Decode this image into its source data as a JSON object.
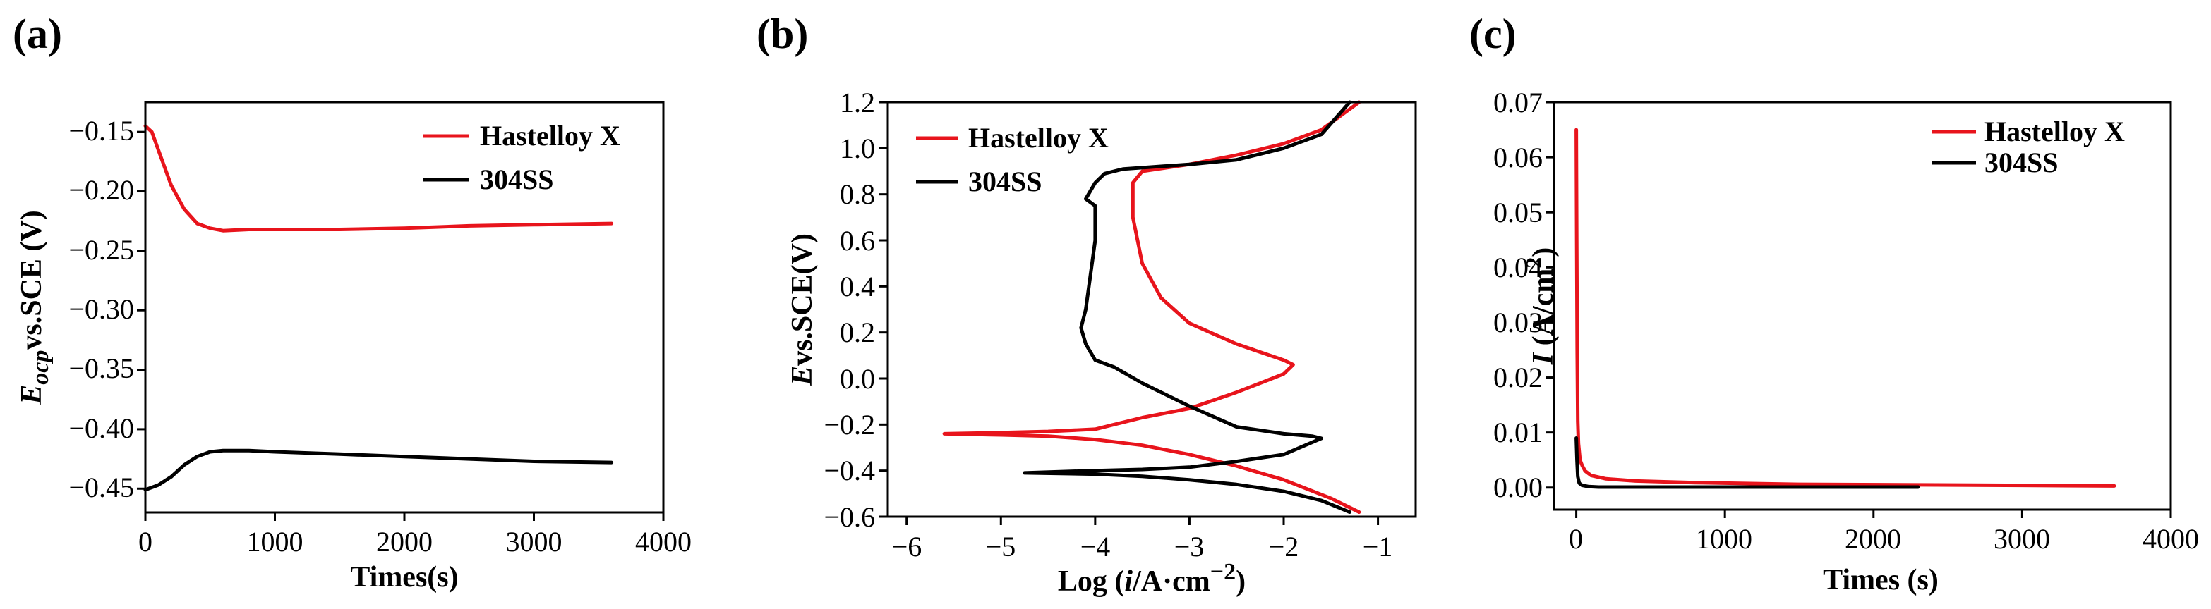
{
  "chart_data": [
    {
      "panel": "(a)",
      "type": "line",
      "xlabel": "Times(s)",
      "ylabel": "E_ocp vs.SCE (V)",
      "ylabel_parts": {
        "symbol": "E",
        "sub": "ocp",
        "rest": "vs.SCE (V)"
      },
      "xlim": [
        0,
        4000
      ],
      "ylim": [
        -0.47,
        -0.125
      ],
      "xticks": [
        0,
        1000,
        2000,
        3000,
        4000
      ],
      "xtick_labels": [
        "0",
        "1000",
        "2000",
        "3000",
        "4000"
      ],
      "yticks": [
        -0.15,
        -0.2,
        -0.25,
        -0.3,
        -0.35,
        -0.4,
        -0.45
      ],
      "ytick_labels": [
        "−0.15",
        "−0.20",
        "−0.25",
        "−0.30",
        "−0.35",
        "−0.40",
        "−0.45"
      ],
      "legend_position": "top-right",
      "series": [
        {
          "name": "Hastelloy X",
          "color": "#e8141c",
          "x": [
            0,
            50,
            100,
            150,
            200,
            300,
            400,
            500,
            600,
            800,
            1000,
            1500,
            2000,
            2500,
            3000,
            3600
          ],
          "y": [
            -0.145,
            -0.15,
            -0.165,
            -0.18,
            -0.195,
            -0.215,
            -0.227,
            -0.231,
            -0.233,
            -0.232,
            -0.232,
            -0.232,
            -0.231,
            -0.229,
            -0.228,
            -0.227
          ]
        },
        {
          "name": "304SS",
          "color": "#000000",
          "x": [
            0,
            100,
            200,
            300,
            400,
            500,
            600,
            800,
            1000,
            1500,
            2000,
            2500,
            3000,
            3600
          ],
          "y": [
            -0.451,
            -0.447,
            -0.44,
            -0.43,
            -0.423,
            -0.419,
            -0.418,
            -0.418,
            -0.419,
            -0.421,
            -0.423,
            -0.425,
            -0.427,
            -0.428
          ]
        }
      ]
    },
    {
      "panel": "(b)",
      "type": "line",
      "xlabel": "Log (i/A·cm−2)",
      "xlabel_parts": {
        "prefix": "Log (",
        "italic": "i",
        "unit": "/A·cm",
        "sup": "−2",
        "suffix": ")"
      },
      "ylabel": "E vs.SCE(V)",
      "ylabel_parts": {
        "symbol": "E",
        "rest": "vs.SCE(V)"
      },
      "xlim": [
        -6.2,
        -0.6
      ],
      "ylim": [
        -0.6,
        1.2
      ],
      "xticks": [
        -6,
        -5,
        -4,
        -3,
        -2,
        -1
      ],
      "xtick_labels": [
        "−6",
        "−5",
        "−4",
        "−3",
        "−2",
        "−1"
      ],
      "yticks": [
        -0.6,
        -0.4,
        -0.2,
        0.0,
        0.2,
        0.4,
        0.6,
        0.8,
        1.0,
        1.2
      ],
      "ytick_labels": [
        "−0.6",
        "−0.4",
        "−0.2",
        "0.0",
        "0.2",
        "0.4",
        "0.6",
        "0.8",
        "1.0",
        "1.2"
      ],
      "legend_position": "top-left",
      "series": [
        {
          "name": "Hastelloy X",
          "color": "#e8141c",
          "x": [
            -1.2,
            -1.5,
            -2.0,
            -2.5,
            -3.0,
            -3.5,
            -4.0,
            -4.5,
            -5.0,
            -5.6,
            -5.0,
            -4.5,
            -4.0,
            -3.8,
            -3.5,
            -3.0,
            -2.5,
            -2.0,
            -1.9,
            -2.0,
            -2.5,
            -3.0,
            -3.3,
            -3.5,
            -3.6,
            -3.6,
            -3.5,
            -3.0,
            -2.5,
            -2.0,
            -1.6,
            -1.2
          ],
          "y": [
            -0.58,
            -0.52,
            -0.44,
            -0.38,
            -0.33,
            -0.29,
            -0.265,
            -0.25,
            -0.245,
            -0.24,
            -0.235,
            -0.23,
            -0.22,
            -0.2,
            -0.17,
            -0.13,
            -0.06,
            0.02,
            0.06,
            0.08,
            0.15,
            0.24,
            0.35,
            0.5,
            0.7,
            0.85,
            0.9,
            0.93,
            0.97,
            1.02,
            1.08,
            1.2
          ]
        },
        {
          "name": "304SS",
          "color": "#000000",
          "x": [
            -1.3,
            -1.6,
            -2.0,
            -2.5,
            -3.0,
            -3.5,
            -4.0,
            -4.75,
            -4.0,
            -3.5,
            -3.0,
            -2.5,
            -2.0,
            -1.6,
            -1.7,
            -2.0,
            -2.5,
            -3.0,
            -3.5,
            -3.8,
            -4.0,
            -4.1,
            -4.15,
            -4.1,
            -4.05,
            -4.0,
            -4.0,
            -4.1,
            -4.0,
            -3.9,
            -3.7,
            -3.0,
            -2.5,
            -2.0,
            -1.6,
            -1.3
          ],
          "y": [
            -0.58,
            -0.53,
            -0.49,
            -0.46,
            -0.44,
            -0.425,
            -0.415,
            -0.41,
            -0.4,
            -0.395,
            -0.385,
            -0.36,
            -0.33,
            -0.26,
            -0.25,
            -0.24,
            -0.21,
            -0.12,
            -0.02,
            0.05,
            0.08,
            0.15,
            0.22,
            0.3,
            0.45,
            0.6,
            0.75,
            0.78,
            0.85,
            0.89,
            0.91,
            0.93,
            0.95,
            1.0,
            1.06,
            1.2
          ]
        }
      ]
    },
    {
      "panel": "(c)",
      "type": "line",
      "xlabel": "Times (s)",
      "ylabel": "I (A/cm2)",
      "ylabel_parts": {
        "symbol": "I",
        "rest": " (A/cm",
        "sup": "2",
        "suffix": ")"
      },
      "xlim": [
        -150,
        4000
      ],
      "ylim": [
        -0.004,
        0.07
      ],
      "xticks": [
        0,
        1000,
        2000,
        3000,
        4000
      ],
      "xtick_labels": [
        "0",
        "1000",
        "2000",
        "3000",
        "4000"
      ],
      "yticks": [
        0.0,
        0.01,
        0.02,
        0.03,
        0.04,
        0.05,
        0.06,
        0.07
      ],
      "ytick_labels": [
        "0.00",
        "0.01",
        "0.02",
        "0.03",
        "0.04",
        "0.05",
        "0.06",
        "0.07"
      ],
      "legend_position": "top-right",
      "series": [
        {
          "name": "Hastelloy X",
          "color": "#e8141c",
          "x": [
            0,
            3,
            6,
            10,
            15,
            25,
            40,
            60,
            100,
            200,
            400,
            800,
            1500,
            2300,
            3000,
            3620
          ],
          "y": [
            0.065,
            0.045,
            0.025,
            0.012,
            0.008,
            0.005,
            0.004,
            0.003,
            0.0022,
            0.0016,
            0.0012,
            0.0009,
            0.0006,
            0.0005,
            0.0004,
            0.0003
          ]
        },
        {
          "name": "304SS",
          "color": "#000000",
          "x": [
            0,
            5,
            10,
            20,
            40,
            80,
            150,
            300,
            1000,
            2300
          ],
          "y": [
            0.009,
            0.005,
            0.002,
            0.0008,
            0.0004,
            0.0002,
            0.0001,
            0.0001,
            0.0001,
            0.0001
          ]
        }
      ]
    }
  ]
}
